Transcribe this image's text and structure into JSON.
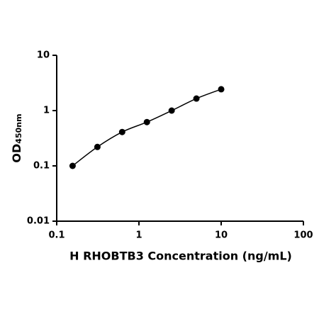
{
  "chart_data": {
    "type": "scatter",
    "log_x": true,
    "log_y": true,
    "color": "#000000",
    "fit_line": true,
    "x": [
      0.156,
      0.3125,
      0.625,
      1.25,
      2.5,
      5,
      10
    ],
    "values": [
      0.1,
      0.22,
      0.41,
      0.62,
      1.0,
      1.65,
      2.43
    ],
    "xlim": [
      0.1,
      100
    ],
    "xticks": [
      0.1,
      1,
      10,
      100
    ],
    "ylim": [
      0.01,
      10
    ],
    "yticks": [
      0.01,
      0.1,
      1,
      10
    ],
    "xlabel": "H RHOBTB3 Concentration (ng/mL)",
    "ylabel": "OD",
    "ylabel_sub": "450nm"
  }
}
